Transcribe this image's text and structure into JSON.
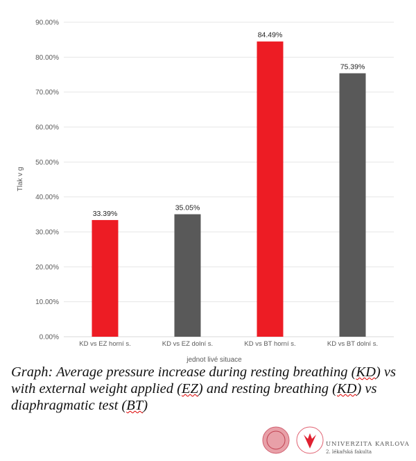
{
  "chart_data": {
    "type": "bar",
    "title": "",
    "xlabel": "jednot livé situace",
    "ylabel": "Tlak v g",
    "categories": [
      "KD vs EZ horní s.",
      "KD vs EZ dolní s.",
      "KD vs BT horní s.",
      "KD vs BT dolní s."
    ],
    "values": [
      33.39,
      35.05,
      84.49,
      75.39
    ],
    "data_labels": [
      "33.39%",
      "35.05%",
      "84.49%",
      "75.39%"
    ],
    "colors": [
      "#ED1C24",
      "#595959",
      "#ED1C24",
      "#595959"
    ],
    "ylim": [
      0,
      90
    ],
    "yticks": [
      "0.00%",
      "10.00%",
      "20.00%",
      "30.00%",
      "40.00%",
      "50.00%",
      "60.00%",
      "70.00%",
      "80.00%",
      "90.00%"
    ],
    "grid": true
  },
  "caption": {
    "p1": "Graph: Average pressure increase during resting breathing (",
    "kd1": "KD",
    "p2": ") vs with external weight applied (",
    "ez": "EZ",
    "p3": ") and  resting breathing (",
    "kd2": "KD",
    "p4": ") vs diaphragmatic test (",
    "bt": "BT",
    "p5": ")"
  },
  "logo": {
    "university": "UNIVERZITA KARLOVA",
    "faculty": "2. lékařská fakulta"
  }
}
